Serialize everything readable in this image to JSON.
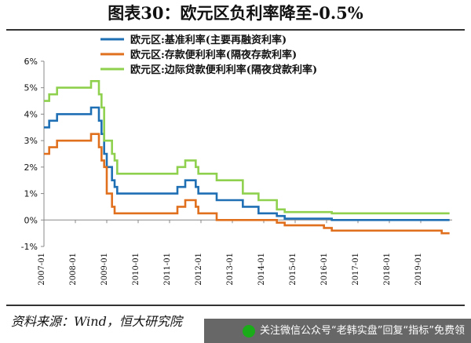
{
  "title": "图表30：欧元区负利率降至-0.5%",
  "source": "资料来源：Wind，恒大研究院",
  "watermark": "关注微信公众号“老韩实盘”回复“指标”免费领",
  "chart_data": {
    "type": "line",
    "title": "图表30：欧元区负利率降至-0.5%",
    "xlabel": "",
    "ylabel": "",
    "ylim": [
      -1,
      6
    ],
    "xlim": [
      "2007-01",
      "2019-12"
    ],
    "yticks": [
      "-1%",
      "0%",
      "1%",
      "2%",
      "3%",
      "4%",
      "5%",
      "6%"
    ],
    "yticks_values": [
      -1,
      0,
      1,
      2,
      3,
      4,
      5,
      6
    ],
    "xticks": [
      "2007-01",
      "2008-01",
      "2009-01",
      "2010-01",
      "2011-01",
      "2012-01",
      "2013-01",
      "2014-01",
      "2015-01",
      "2016-01",
      "2017-01",
      "2018-01",
      "2019-01"
    ],
    "grid": false,
    "legend_position": "top-center",
    "series": [
      {
        "name": "欧元区:基准利率(主要再融资利率)",
        "color": "#1f6fb5",
        "points": [
          [
            "2007-01",
            3.5
          ],
          [
            "2007-03",
            3.75
          ],
          [
            "2007-06",
            4.0
          ],
          [
            "2008-07",
            4.25
          ],
          [
            "2008-10",
            3.75
          ],
          [
            "2008-11",
            3.25
          ],
          [
            "2008-12",
            2.5
          ],
          [
            "2009-01",
            2.0
          ],
          [
            "2009-03",
            1.5
          ],
          [
            "2009-04",
            1.25
          ],
          [
            "2009-05",
            1.0
          ],
          [
            "2011-04",
            1.25
          ],
          [
            "2011-07",
            1.5
          ],
          [
            "2011-11",
            1.25
          ],
          [
            "2011-12",
            1.0
          ],
          [
            "2012-07",
            0.75
          ],
          [
            "2013-05",
            0.5
          ],
          [
            "2013-11",
            0.25
          ],
          [
            "2014-06",
            0.15
          ],
          [
            "2014-09",
            0.05
          ],
          [
            "2016-03",
            0.0
          ],
          [
            "2019-09",
            0.0
          ],
          [
            "2019-12",
            0.0
          ]
        ]
      },
      {
        "name": "欧元区:存款便利利率(隔夜存款利率)",
        "color": "#e0701e",
        "points": [
          [
            "2007-01",
            2.5
          ],
          [
            "2007-03",
            2.75
          ],
          [
            "2007-06",
            3.0
          ],
          [
            "2008-07",
            3.25
          ],
          [
            "2008-10",
            2.75
          ],
          [
            "2008-11",
            2.25
          ],
          [
            "2008-12",
            2.0
          ],
          [
            "2009-01",
            1.0
          ],
          [
            "2009-03",
            0.5
          ],
          [
            "2009-04",
            0.25
          ],
          [
            "2011-04",
            0.5
          ],
          [
            "2011-07",
            0.75
          ],
          [
            "2011-11",
            0.5
          ],
          [
            "2011-12",
            0.25
          ],
          [
            "2012-07",
            0.0
          ],
          [
            "2014-06",
            -0.1
          ],
          [
            "2014-09",
            -0.2
          ],
          [
            "2015-12",
            -0.3
          ],
          [
            "2016-03",
            -0.4
          ],
          [
            "2019-09",
            -0.5
          ],
          [
            "2019-12",
            -0.5
          ]
        ]
      },
      {
        "name": "欧元区:边际贷款便利利率(隔夜贷款利率)",
        "color": "#8fd14f",
        "points": [
          [
            "2007-01",
            4.5
          ],
          [
            "2007-03",
            4.75
          ],
          [
            "2007-06",
            5.0
          ],
          [
            "2008-07",
            5.25
          ],
          [
            "2008-10",
            4.75
          ],
          [
            "2008-11",
            4.25
          ],
          [
            "2008-12",
            3.0
          ],
          [
            "2009-01",
            3.0
          ],
          [
            "2009-03",
            2.5
          ],
          [
            "2009-04",
            2.25
          ],
          [
            "2009-05",
            1.75
          ],
          [
            "2011-04",
            2.0
          ],
          [
            "2011-07",
            2.25
          ],
          [
            "2011-11",
            2.0
          ],
          [
            "2011-12",
            1.75
          ],
          [
            "2012-07",
            1.5
          ],
          [
            "2013-05",
            1.0
          ],
          [
            "2013-11",
            0.75
          ],
          [
            "2014-06",
            0.4
          ],
          [
            "2014-09",
            0.3
          ],
          [
            "2015-12",
            0.3
          ],
          [
            "2016-03",
            0.25
          ],
          [
            "2019-12",
            0.25
          ]
        ]
      }
    ]
  }
}
